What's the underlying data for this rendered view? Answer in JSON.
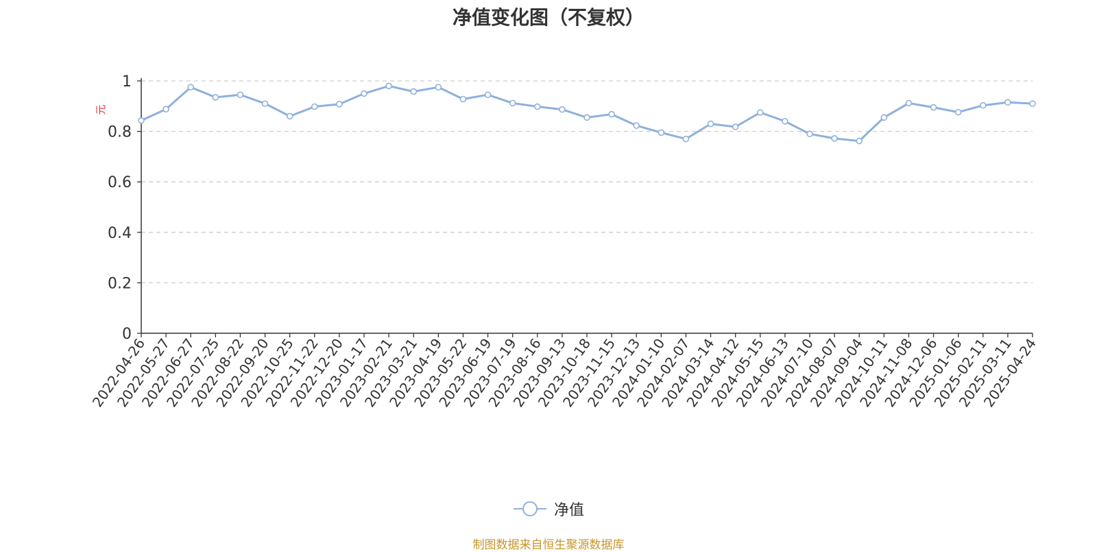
{
  "chart_data": {
    "type": "line",
    "title": "净值变化图（不复权）",
    "ylabel": "元",
    "xlabel": "",
    "ylim": [
      0,
      1
    ],
    "yticks": [
      "0",
      "0.2",
      "0.4",
      "0.6",
      "0.8",
      "1"
    ],
    "grid": true,
    "legend_position": "bottom",
    "x": [
      "2022-04-26",
      "2022-05-27",
      "2022-06-27",
      "2022-07-25",
      "2022-08-22",
      "2022-09-20",
      "2022-10-25",
      "2022-11-22",
      "2022-12-20",
      "2023-01-17",
      "2023-02-21",
      "2023-03-21",
      "2023-04-19",
      "2023-05-22",
      "2023-06-19",
      "2023-07-19",
      "2023-08-16",
      "2023-09-13",
      "2023-10-18",
      "2023-11-15",
      "2023-12-13",
      "2024-01-10",
      "2024-02-07",
      "2024-03-14",
      "2024-04-12",
      "2024-05-15",
      "2024-06-13",
      "2024-07-10",
      "2024-08-07",
      "2024-09-04",
      "2024-10-11",
      "2024-11-08",
      "2024-12-06",
      "2025-01-06",
      "2025-02-11",
      "2025-03-11",
      "2025-04-24"
    ],
    "series": [
      {
        "name": "净值",
        "color": "#8eb0dc",
        "values": [
          0.843,
          0.888,
          0.975,
          0.935,
          0.945,
          0.91,
          0.86,
          0.898,
          0.908,
          0.95,
          0.98,
          0.958,
          0.975,
          0.928,
          0.945,
          0.912,
          0.898,
          0.887,
          0.855,
          0.868,
          0.823,
          0.795,
          0.77,
          0.83,
          0.818,
          0.875,
          0.84,
          0.79,
          0.772,
          0.762,
          0.855,
          0.912,
          0.895,
          0.876,
          0.903,
          0.915,
          0.91
        ]
      }
    ]
  },
  "legend": {
    "label": "净值"
  },
  "source_note": {
    "text": "制图数据来自恒生聚源数据库",
    "color": "#c8952c"
  }
}
